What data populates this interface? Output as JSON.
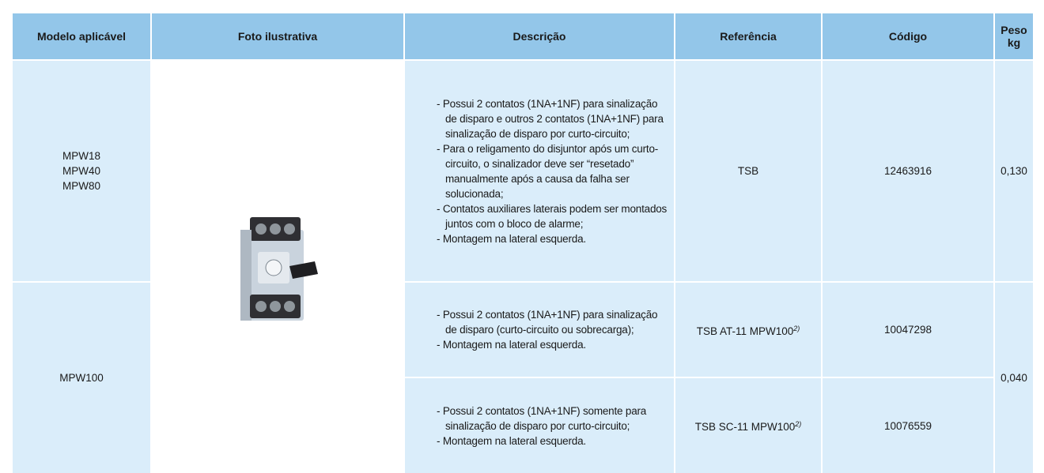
{
  "table": {
    "headers": [
      "Modelo aplicável",
      "Foto ilustrativa",
      "Descrição",
      "Referência",
      "Código",
      "Peso kg"
    ],
    "rows": [
      {
        "models": [
          "MPW18",
          "MPW40",
          "MPW80"
        ],
        "items": [
          {
            "description": [
              "Possui 2 contatos (1NA+1NF) para sinalização de disparo e outros 2 contatos (1NA+1NF) para sinalização de disparo por curto-circuito;",
              "Para o religamento do disjuntor após um curto-circuito, o sinalizador deve ser “resetado” manualmente após a causa da falha ser solucionada;",
              "Contatos auxiliares laterais podem ser montados juntos com o bloco de alarme;",
              "Montagem na lateral esquerda."
            ],
            "reference": {
              "text": "TSB"
            },
            "code": "12463916"
          }
        ],
        "weight": "0,130"
      },
      {
        "models": [
          "MPW100"
        ],
        "items": [
          {
            "description": [
              "Possui 2 contatos (1NA+1NF) para sinalização de disparo (curto-circuito ou sobrecarga);",
              "Montagem na lateral esquerda."
            ],
            "reference": {
              "text": "TSB AT-11 MPW100",
              "note": "2)"
            },
            "code": "10047298"
          },
          {
            "description": [
              "Possui 2 contatos (1NA+1NF) somente para sinalização de disparo por curto-circuito;",
              "Montagem na lateral esquerda."
            ],
            "reference": {
              "text": "TSB SC-11 MPW100",
              "note": "2)"
            },
            "code": "10076559"
          }
        ],
        "weight": "0,040"
      }
    ]
  }
}
